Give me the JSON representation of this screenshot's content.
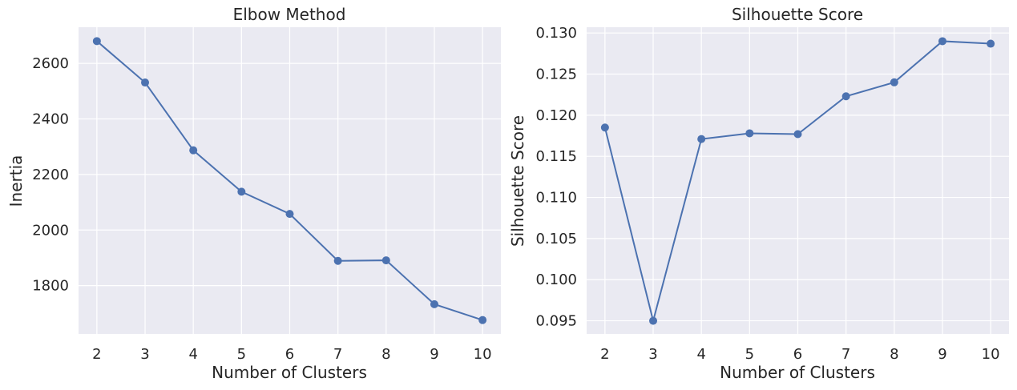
{
  "chart_data": [
    {
      "type": "line",
      "title": "Elbow Method",
      "xlabel": "Number of Clusters",
      "ylabel": "Inertia",
      "x": [
        2,
        3,
        4,
        5,
        6,
        7,
        8,
        9,
        10
      ],
      "series": [
        {
          "values": [
            2680,
            2531,
            2287,
            2138,
            2058,
            1889,
            1891,
            1733,
            1676
          ]
        }
      ],
      "xticks": [
        "2",
        "3",
        "4",
        "5",
        "6",
        "7",
        "8",
        "9",
        "10"
      ],
      "yticks": [
        "1800",
        "2000",
        "2200",
        "2400",
        "2600"
      ],
      "ytick_values": [
        1800,
        2000,
        2200,
        2400,
        2600
      ],
      "xlim": [
        1.62,
        10.38
      ],
      "ylim": [
        1626,
        2730
      ],
      "marker": "circle",
      "grid": true,
      "color": "#4c72b0",
      "background": "#eaeaf2"
    },
    {
      "type": "line",
      "title": "Silhouette Score",
      "xlabel": "Number of Clusters",
      "ylabel": "Silhouette Score",
      "x": [
        2,
        3,
        4,
        5,
        6,
        7,
        8,
        9,
        10
      ],
      "series": [
        {
          "values": [
            0.1185,
            0.095,
            0.1171,
            0.1178,
            0.1177,
            0.1223,
            0.124,
            0.129,
            0.1287
          ]
        }
      ],
      "xticks": [
        "2",
        "3",
        "4",
        "5",
        "6",
        "7",
        "8",
        "9",
        "10"
      ],
      "yticks": [
        "0.095",
        "0.100",
        "0.105",
        "0.110",
        "0.115",
        "0.120",
        "0.125",
        "0.130"
      ],
      "ytick_values": [
        0.095,
        0.1,
        0.105,
        0.11,
        0.115,
        0.12,
        0.125,
        0.13
      ],
      "xlim": [
        1.62,
        10.38
      ],
      "ylim": [
        0.0934,
        0.1307
      ],
      "marker": "circle",
      "grid": true,
      "color": "#4c72b0",
      "background": "#eaeaf2"
    }
  ]
}
